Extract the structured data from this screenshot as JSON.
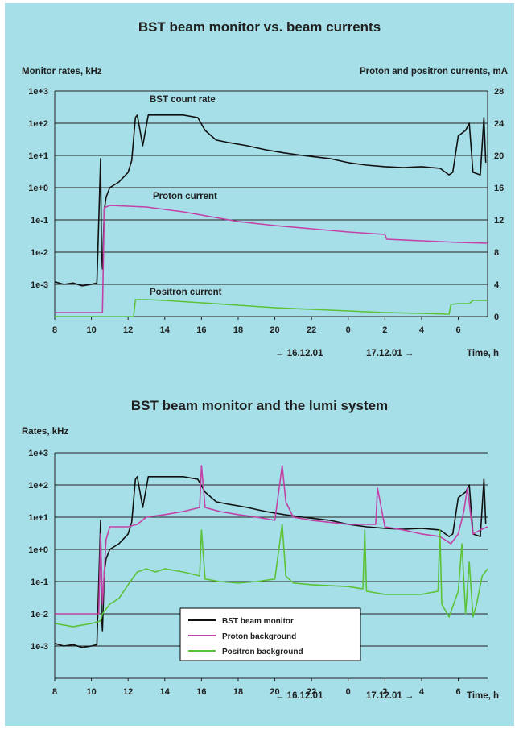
{
  "colors": {
    "background": "#a6dfe8",
    "bst": "#111111",
    "proton": "#c242a8",
    "positron": "#5cc23a",
    "grid": "#222222"
  },
  "chart_data": [
    {
      "type": "line",
      "title": "BST  beam monitor vs. beam currents",
      "ylabel": "Monitor rates, kHz",
      "y2label": "Proton and positron currents, mA",
      "xlabel": "Time, h",
      "yscale": "log",
      "ylim": [
        0.0001,
        1000
      ],
      "y2lim": [
        0,
        28
      ],
      "xlim": [
        8,
        31.6
      ],
      "grid": true,
      "yticks": [
        "1e+3",
        "1e+2",
        "1e+1",
        "1e+0",
        "1e-1",
        "1e-2",
        "1e-3"
      ],
      "y2ticks": [
        "28",
        "24",
        "20",
        "16",
        "12",
        "8",
        "4",
        "0"
      ],
      "xticks": [
        "8",
        "10",
        "12",
        "14",
        "16",
        "18",
        "20",
        "22",
        "0",
        "2",
        "4",
        "6"
      ],
      "date_labels": {
        "left": "← 16.12.01",
        "right": "17.12.01 →"
      },
      "annotations": [
        "BST count rate",
        "Proton current",
        "Positron current"
      ],
      "series": [
        {
          "axis": "left",
          "x": [
            8,
            8.5,
            9,
            9.5,
            10,
            10.3,
            10.5,
            10.55,
            10.6,
            10.7,
            10.8,
            11,
            11.5,
            12,
            12.2,
            12.4,
            12.5,
            12.8,
            13.1,
            14,
            15,
            15.8,
            16.2,
            16.8,
            17.5,
            18.5,
            19.5,
            20.5,
            21.5,
            23,
            24,
            25,
            26,
            27,
            28,
            29,
            29.5,
            29.7,
            30,
            30.4,
            30.6,
            30.8,
            31.2,
            31.4,
            31.5
          ],
          "y": [
            0.0012,
            0.001,
            0.0011,
            0.0009,
            0.001,
            0.0011,
            8,
            0.01,
            0.003,
            0.2,
            0.5,
            1,
            1.5,
            3,
            7,
            150,
            180,
            20,
            180,
            180,
            180,
            150,
            60,
            30,
            25,
            20,
            15,
            12,
            10,
            8,
            6,
            5,
            4.5,
            4.2,
            4.5,
            4,
            2.5,
            3,
            40,
            60,
            100,
            3,
            2.5,
            150,
            6
          ]
        },
        {
          "axis": "right",
          "x": [
            8,
            10,
            10.6,
            10.7,
            11,
            12,
            13,
            14,
            15,
            16,
            17,
            18,
            20,
            22,
            24,
            26,
            26.1,
            28,
            30,
            31.6
          ],
          "y": [
            0.5,
            0.5,
            0.5,
            13.5,
            13.8,
            13.7,
            13.6,
            13.3,
            13.0,
            12.6,
            12.2,
            11.8,
            11.3,
            10.9,
            10.5,
            10.2,
            9.6,
            9.4,
            9.2,
            9.1
          ]
        },
        {
          "axis": "right",
          "x": [
            8,
            12.3,
            12.4,
            13,
            14,
            16,
            18,
            20,
            22,
            24,
            26,
            28,
            29.5,
            29.6,
            30,
            30.6,
            30.8,
            31.6
          ],
          "y": [
            0,
            0,
            2.1,
            2.1,
            2.0,
            1.7,
            1.4,
            1.1,
            0.9,
            0.7,
            0.5,
            0.4,
            0.3,
            1.5,
            1.6,
            1.6,
            2.0,
            2.0
          ]
        }
      ]
    },
    {
      "type": "line",
      "title": "BST beam monitor and the lumi system",
      "ylabel": "Rates, kHz",
      "xlabel": "Time, h",
      "yscale": "log",
      "ylim": [
        0.0001,
        1000
      ],
      "xlim": [
        8,
        31.6
      ],
      "grid": true,
      "legend_position": "bottom-center",
      "yticks": [
        "1e+3",
        "1e+2",
        "1e+1",
        "1e+0",
        "1e-1",
        "1e-2",
        "1e-3"
      ],
      "xticks": [
        "8",
        "10",
        "12",
        "14",
        "16",
        "18",
        "20",
        "22",
        "0",
        "2",
        "4",
        "6"
      ],
      "date_labels": {
        "left": "← 16.12.01",
        "right": "17.12.01 →"
      },
      "series": [
        {
          "name": "BST beam monitor",
          "x": [
            8,
            8.5,
            9,
            9.5,
            10,
            10.3,
            10.5,
            10.55,
            10.6,
            10.7,
            10.8,
            11,
            11.5,
            12,
            12.2,
            12.4,
            12.5,
            12.8,
            13.1,
            14,
            15,
            15.8,
            16.2,
            16.8,
            17.5,
            18.5,
            19.5,
            20.5,
            21.5,
            23,
            24,
            25,
            26,
            27,
            28,
            29,
            29.5,
            29.7,
            30,
            30.4,
            30.6,
            30.8,
            31.2,
            31.4,
            31.5
          ],
          "y": [
            0.0012,
            0.001,
            0.0011,
            0.0009,
            0.001,
            0.0011,
            8,
            0.01,
            0.003,
            0.2,
            0.5,
            1,
            1.5,
            3,
            7,
            150,
            180,
            20,
            180,
            180,
            180,
            150,
            60,
            30,
            25,
            20,
            15,
            12,
            10,
            8,
            6,
            5,
            4.5,
            4.2,
            4.5,
            4,
            2.5,
            3,
            40,
            60,
            100,
            3,
            2.5,
            150,
            6
          ]
        },
        {
          "name": "Proton background",
          "x": [
            8,
            9,
            10,
            10.4,
            10.5,
            10.6,
            10.8,
            11,
            12,
            12.5,
            13,
            14,
            15,
            15.9,
            16,
            16.2,
            17,
            18,
            19,
            20,
            20.4,
            20.6,
            21,
            22,
            24,
            25.5,
            25.6,
            26,
            27,
            28,
            29,
            29.6,
            30,
            30.3,
            30.5,
            30.8,
            31.2,
            31.6
          ],
          "y": [
            0.01,
            0.01,
            0.01,
            0.01,
            3,
            0.02,
            2,
            5,
            5,
            6,
            10,
            12,
            15,
            20,
            400,
            20,
            15,
            12,
            10,
            8,
            400,
            30,
            10,
            8,
            6,
            6,
            80,
            5,
            4,
            3,
            2.5,
            1.5,
            3,
            15,
            80,
            3,
            4,
            5
          ]
        },
        {
          "name": "Positron background",
          "x": [
            8,
            9,
            10,
            10.5,
            10.6,
            11,
            11.5,
            12,
            12.5,
            13,
            13.5,
            14,
            15,
            15.9,
            16,
            16.2,
            17,
            18,
            19,
            20,
            20.4,
            20.6,
            21,
            22,
            24,
            24.8,
            24.9,
            25,
            26,
            27,
            28,
            28.9,
            29,
            29.1,
            29.5,
            30,
            30.2,
            30.4,
            30.6,
            30.8,
            31,
            31.3,
            31.6
          ],
          "y": [
            0.005,
            0.004,
            0.005,
            0.006,
            0.01,
            0.02,
            0.03,
            0.08,
            0.2,
            0.25,
            0.2,
            0.25,
            0.2,
            0.15,
            4,
            0.12,
            0.1,
            0.09,
            0.1,
            0.12,
            6,
            0.15,
            0.09,
            0.08,
            0.07,
            0.06,
            4,
            0.05,
            0.04,
            0.04,
            0.04,
            0.05,
            4,
            0.02,
            0.008,
            0.05,
            1.5,
            0.01,
            0.4,
            0.008,
            0.02,
            0.15,
            0.25
          ]
        }
      ]
    }
  ]
}
